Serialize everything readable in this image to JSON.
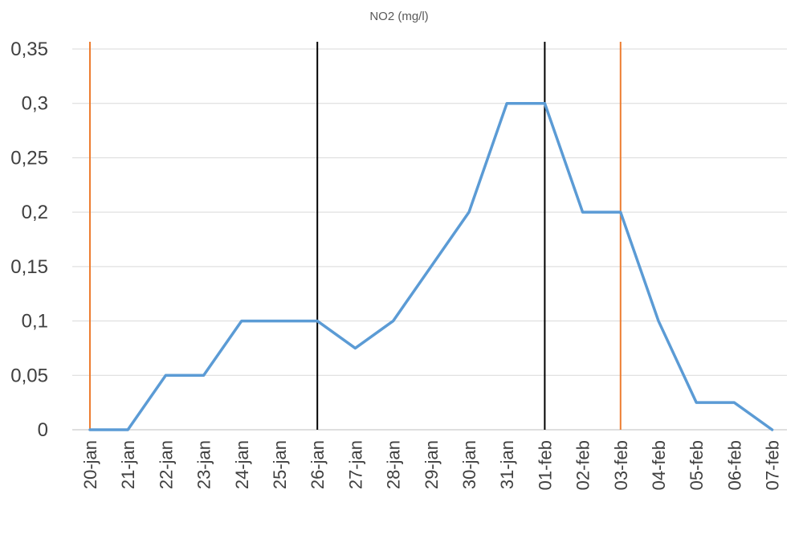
{
  "chart_data": {
    "type": "line",
    "title": "NO2 (mg/l)",
    "categories": [
      "20-jan",
      "21-jan",
      "22-jan",
      "23-jan",
      "24-jan",
      "25-jan",
      "26-jan",
      "27-jan",
      "28-jan",
      "29-jan",
      "30-jan",
      "31-jan",
      "01-feb",
      "02-feb",
      "03-feb",
      "04-feb",
      "05-feb",
      "06-feb",
      "07-feb"
    ],
    "series": [
      {
        "values": [
          0,
          0,
          0.05,
          0.05,
          0.1,
          0.1,
          0.1,
          0.075,
          0.1,
          0.15,
          0.2,
          0.3,
          0.3,
          0.2,
          0.2,
          0.1,
          0.025,
          0.025,
          0
        ],
        "color": "#5b9bd5"
      }
    ],
    "ylim": [
      0,
      0.35
    ],
    "yticks": [
      "0",
      "0,05",
      "0,1",
      "0,15",
      "0,2",
      "0,25",
      "0,3",
      "0,35"
    ],
    "grid": true,
    "reference_lines": [
      {
        "category": "20-jan",
        "color": "#ed7d31"
      },
      {
        "category": "26-jan",
        "color": "#000000"
      },
      {
        "category": "01-feb",
        "color": "#000000"
      },
      {
        "category": "03-feb",
        "color": "#ed7d31"
      }
    ]
  }
}
